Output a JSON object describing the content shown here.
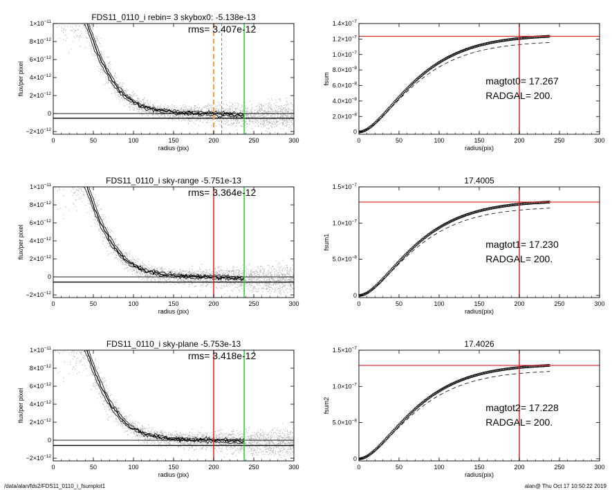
{
  "footer": {
    "left": "/data/alan/fds2/FDS11_0110_i_fsumplot1",
    "right": "alan@  Thu Oct 17 10:50:22 2019"
  },
  "colors": {
    "points": "#b4b4b4",
    "profile": "#000000",
    "red": "#dd1e1e",
    "green": "#22d422",
    "orange": "#f0a040",
    "axis": "#000000"
  },
  "chart_data": [
    {
      "type": "scatter",
      "title": "FDS11_0110_i rebin= 3    skybox0: -5.138e-13",
      "rms_text": "rms= 3.407e-12",
      "xlabel": "radius (pix)",
      "ylabel": "flux/per pixel",
      "xlim": [
        0,
        300
      ],
      "ylim": [
        -2.3e-12,
        1e-11
      ],
      "xticks": [
        0,
        50,
        100,
        150,
        200,
        250,
        300
      ],
      "yticks": [
        {
          "v": -2e-12,
          "m": "−2×10",
          "e": "−12"
        },
        {
          "v": 0,
          "m": "0",
          "e": ""
        },
        {
          "v": 2e-12,
          "m": "2×10",
          "e": "−12"
        },
        {
          "v": 4e-12,
          "m": "4×10",
          "e": "−12"
        },
        {
          "v": 6e-12,
          "m": "6×10",
          "e": "−12"
        },
        {
          "v": 8e-12,
          "m": "8×10",
          "e": "−12"
        },
        {
          "v": 1e-11,
          "m": "1×10",
          "e": "−11"
        }
      ],
      "hlines": [
        0,
        -5.138e-13
      ],
      "vlines": [
        {
          "x": 200,
          "style": "orange-dash"
        },
        {
          "x": 210,
          "style": "gray-dash"
        },
        {
          "x": 238,
          "style": "green"
        }
      ],
      "profile_x": [
        40,
        45,
        50,
        55,
        60,
        65,
        70,
        75,
        80,
        85,
        90,
        95,
        100,
        105,
        110,
        115,
        120,
        130,
        140,
        150,
        160,
        170,
        180,
        190,
        200,
        210,
        220,
        230,
        238
      ],
      "profile_y": [
        1.05e-11,
        9.2e-12,
        8e-12,
        6.9e-12,
        5.9e-12,
        5e-12,
        4.2e-12,
        3.5e-12,
        2.9e-12,
        2.4e-12,
        1.95e-12,
        1.6e-12,
        1.3e-12,
        1.05e-12,
        8.5e-13,
        7e-13,
        5.5e-13,
        4e-13,
        2.5e-13,
        1.5e-13,
        1e-13,
        6e-14,
        3e-14,
        1e-14,
        -2e-14,
        -6e-14,
        -1e-13,
        -1.3e-13,
        -1.5e-13
      ],
      "point_sigma": 1.5e-12
    },
    {
      "type": "line",
      "title": "",
      "xlabel": "radius(pix)",
      "ylabel": "fsum",
      "xlim": [
        0,
        300
      ],
      "ylim": [
        -3e-09,
        1.4e-07
      ],
      "xticks": [
        0,
        50,
        100,
        150,
        200,
        250,
        300
      ],
      "yticks": [
        {
          "v": 0,
          "m": "0",
          "e": ""
        },
        {
          "v": 2e-08,
          "m": "2.0×10",
          "e": "−8"
        },
        {
          "v": 4e-08,
          "m": "4.0×10",
          "e": "−8"
        },
        {
          "v": 6e-08,
          "m": "6.0×10",
          "e": "−8"
        },
        {
          "v": 8e-08,
          "m": "8.0×10",
          "e": "−8"
        },
        {
          "v": 1e-07,
          "m": "1.0×10",
          "e": "−7"
        },
        {
          "v": 1.2e-07,
          "m": "1.2×10",
          "e": "−7"
        },
        {
          "v": 1.4e-07,
          "m": "1.4×10",
          "e": "−7"
        }
      ],
      "hline": 1.235e-07,
      "vline": 200,
      "fsum_final": 1.235e-07,
      "scale_length": 40,
      "dashed_ratio": 0.935,
      "max_radius": 238,
      "annotations": [
        "magtot0=  17.267",
        "RADGAL=    200."
      ]
    },
    {
      "type": "scatter",
      "title": "FDS11_0110_i sky-range -5.751e-13",
      "rms_text": "rms= 3.364e-12",
      "xlabel": "radius (pix)",
      "ylabel": "flux/per pixel",
      "xlim": [
        0,
        300
      ],
      "ylim": [
        -2.3e-12,
        1e-11
      ],
      "xticks": [
        0,
        50,
        100,
        150,
        200,
        250,
        300
      ],
      "yticks": [
        {
          "v": -2e-12,
          "m": "−2×10",
          "e": "−12"
        },
        {
          "v": 0,
          "m": "0",
          "e": ""
        },
        {
          "v": 2e-12,
          "m": "2×10",
          "e": "−12"
        },
        {
          "v": 4e-12,
          "m": "4×10",
          "e": "−12"
        },
        {
          "v": 6e-12,
          "m": "6×10",
          "e": "−12"
        },
        {
          "v": 8e-12,
          "m": "8×10",
          "e": "−12"
        },
        {
          "v": 1e-11,
          "m": "1×10",
          "e": "−11"
        }
      ],
      "hlines": [
        0,
        -5.751e-13
      ],
      "vlines": [
        {
          "x": 200,
          "style": "red"
        },
        {
          "x": 238,
          "style": "green"
        }
      ],
      "profile_x": [
        40,
        45,
        50,
        55,
        60,
        65,
        70,
        75,
        80,
        85,
        90,
        95,
        100,
        105,
        110,
        115,
        120,
        130,
        140,
        150,
        160,
        170,
        180,
        190,
        200,
        210,
        220,
        230,
        238
      ],
      "profile_y": [
        1.05e-11,
        9.2e-12,
        8e-12,
        6.9e-12,
        5.9e-12,
        5e-12,
        4.2e-12,
        3.5e-12,
        2.9e-12,
        2.4e-12,
        1.95e-12,
        1.6e-12,
        1.3e-12,
        1.05e-12,
        8.5e-13,
        7e-13,
        5.5e-13,
        4e-13,
        2.5e-13,
        1.5e-13,
        1e-13,
        6e-14,
        3e-14,
        1e-14,
        -2e-14,
        -6e-14,
        -1e-13,
        -1.3e-13,
        -1.5e-13
      ],
      "point_sigma": 1.5e-12
    },
    {
      "type": "line",
      "title": "17.4005",
      "xlabel": "radius(pix)",
      "ylabel": "fsum1",
      "xlim": [
        0,
        300
      ],
      "ylim": [
        -3e-09,
        1.5e-07
      ],
      "xticks": [
        0,
        50,
        100,
        150,
        200,
        250,
        300
      ],
      "yticks": [
        {
          "v": 0,
          "m": "0",
          "e": ""
        },
        {
          "v": 5e-08,
          "m": "5.0×10",
          "e": "−8"
        },
        {
          "v": 1e-07,
          "m": "1.0×10",
          "e": "−7"
        },
        {
          "v": 1.5e-07,
          "m": "1.5×10",
          "e": "−7"
        }
      ],
      "hline": 1.29e-07,
      "vline": 200,
      "fsum_final": 1.29e-07,
      "scale_length": 40,
      "dashed_ratio": 0.935,
      "max_radius": 238,
      "annotations": [
        "magtot1=  17.230",
        "RADGAL=    200."
      ]
    },
    {
      "type": "scatter",
      "title": "FDS11_0110_i sky-plane -5.753e-13",
      "rms_text": "rms= 3.418e-12",
      "xlabel": "radius (pix)",
      "ylabel": "flux/per pixel",
      "xlim": [
        0,
        300
      ],
      "ylim": [
        -2.3e-12,
        1e-11
      ],
      "xticks": [
        0,
        50,
        100,
        150,
        200,
        250,
        300
      ],
      "yticks": [
        {
          "v": -2e-12,
          "m": "−2×10",
          "e": "−12"
        },
        {
          "v": 0,
          "m": "0",
          "e": ""
        },
        {
          "v": 2e-12,
          "m": "2×10",
          "e": "−12"
        },
        {
          "v": 4e-12,
          "m": "4×10",
          "e": "−12"
        },
        {
          "v": 6e-12,
          "m": "6×10",
          "e": "−12"
        },
        {
          "v": 8e-12,
          "m": "8×10",
          "e": "−12"
        },
        {
          "v": 1e-11,
          "m": "1×10",
          "e": "−11"
        }
      ],
      "hlines": [
        0,
        -5.753e-13
      ],
      "vlines": [
        {
          "x": 200,
          "style": "red"
        },
        {
          "x": 238,
          "style": "green"
        }
      ],
      "profile_x": [
        40,
        45,
        50,
        55,
        60,
        65,
        70,
        75,
        80,
        85,
        90,
        95,
        100,
        105,
        110,
        115,
        120,
        130,
        140,
        150,
        160,
        170,
        180,
        190,
        200,
        210,
        220,
        230,
        238
      ],
      "profile_y": [
        1.05e-11,
        9.2e-12,
        8e-12,
        6.9e-12,
        5.9e-12,
        5e-12,
        4.2e-12,
        3.5e-12,
        2.9e-12,
        2.4e-12,
        1.95e-12,
        1.6e-12,
        1.3e-12,
        1.05e-12,
        8.5e-13,
        7e-13,
        5.5e-13,
        4e-13,
        2.5e-13,
        1.5e-13,
        1e-13,
        6e-14,
        3e-14,
        1e-14,
        -2e-14,
        -6e-14,
        -1e-13,
        -1.3e-13,
        -1.5e-13
      ],
      "point_sigma": 1.5e-12
    },
    {
      "type": "line",
      "title": "17.4026",
      "xlabel": "radius(pix)",
      "ylabel": "fsum2",
      "xlim": [
        0,
        300
      ],
      "ylim": [
        -3e-09,
        1.5e-07
      ],
      "xticks": [
        0,
        50,
        100,
        150,
        200,
        250,
        300
      ],
      "yticks": [
        {
          "v": 0,
          "m": "0",
          "e": ""
        },
        {
          "v": 5e-08,
          "m": "5.0×10",
          "e": "−8"
        },
        {
          "v": 1e-07,
          "m": "1.0×10",
          "e": "−7"
        },
        {
          "v": 1.5e-07,
          "m": "1.5×10",
          "e": "−7"
        }
      ],
      "hline": 1.29e-07,
      "vline": 200,
      "fsum_final": 1.29e-07,
      "scale_length": 40,
      "dashed_ratio": 0.935,
      "max_radius": 238,
      "annotations": [
        "magtot2=  17.228",
        "RADGAL=    200."
      ]
    }
  ]
}
